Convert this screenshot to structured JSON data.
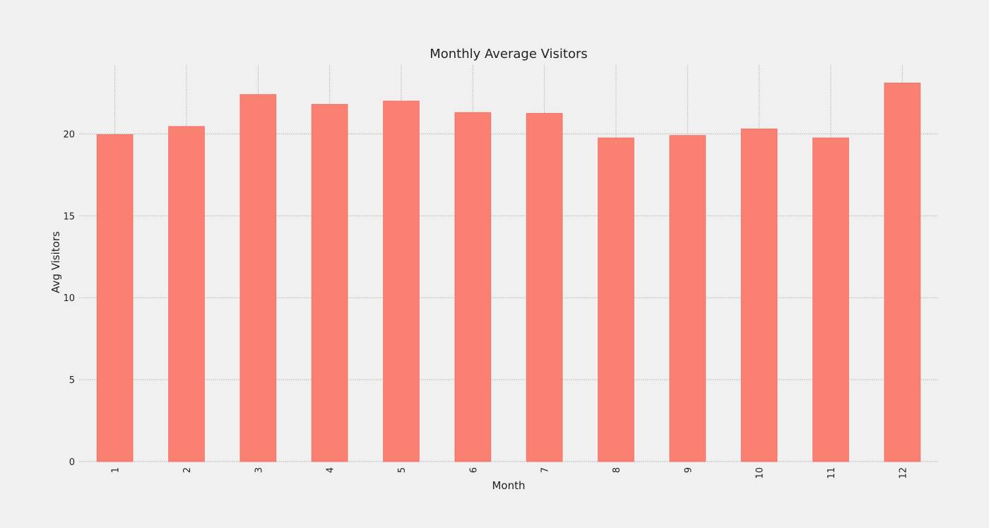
{
  "chart_data": {
    "type": "bar",
    "title": "Monthly Average Visitors",
    "xlabel": "Month",
    "ylabel": "Avg Visitors",
    "categories": [
      "1",
      "2",
      "3",
      "4",
      "5",
      "6",
      "7",
      "8",
      "9",
      "10",
      "11",
      "12"
    ],
    "values": [
      19.95,
      20.45,
      22.4,
      21.8,
      22.0,
      21.3,
      21.25,
      19.75,
      19.9,
      20.3,
      19.75,
      23.1
    ],
    "ylim": [
      0,
      24.2
    ],
    "yticks": [
      0,
      5,
      10,
      15,
      20
    ],
    "grid": true,
    "bar_color": "#fa8072",
    "background_color": "#f0f0f0",
    "tick_label_rotation": "vertical"
  }
}
